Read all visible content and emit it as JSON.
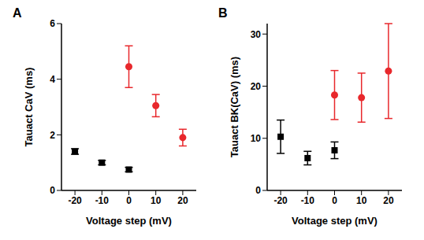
{
  "chart_data": [
    {
      "type": "scatter",
      "title": "A",
      "xlabel": "Voltage step (mV)",
      "ylabel": "Tauact CaV (ms)",
      "xlim": [
        -25,
        25
      ],
      "xticks": [
        -20,
        -10,
        0,
        10,
        20
      ],
      "ylim": [
        0,
        6
      ],
      "yticks": [
        0,
        2,
        4,
        6
      ],
      "series": [
        {
          "color": "#000000",
          "marker": "square",
          "x": [
            -20,
            -10,
            0
          ],
          "values": [
            1.4,
            1.0,
            0.75
          ],
          "error": [
            0.1,
            0.08,
            0.08
          ]
        },
        {
          "color": "#e8282c",
          "marker": "circle",
          "x": [
            0,
            10,
            20
          ],
          "values": [
            4.45,
            3.05,
            1.9
          ],
          "error": [
            0.75,
            0.4,
            0.3
          ]
        }
      ]
    },
    {
      "type": "scatter",
      "title": "B",
      "xlabel": "Voltage step (mV)",
      "ylabel": "Tauact BK(CaV) (ms)",
      "xlim": [
        -25,
        25
      ],
      "xticks": [
        -20,
        -10,
        0,
        10,
        20
      ],
      "ylim": [
        0,
        32
      ],
      "yticks": [
        0,
        10,
        20,
        30
      ],
      "series": [
        {
          "color": "#000000",
          "marker": "square",
          "x": [
            -20,
            -10,
            0
          ],
          "values": [
            10.3,
            6.2,
            7.7
          ],
          "error": [
            3.2,
            1.3,
            1.6
          ]
        },
        {
          "color": "#e8282c",
          "marker": "circle",
          "x": [
            0,
            10,
            20
          ],
          "values": [
            18.3,
            17.8,
            22.9
          ],
          "error": [
            4.7,
            4.7,
            9.1
          ]
        }
      ]
    }
  ]
}
